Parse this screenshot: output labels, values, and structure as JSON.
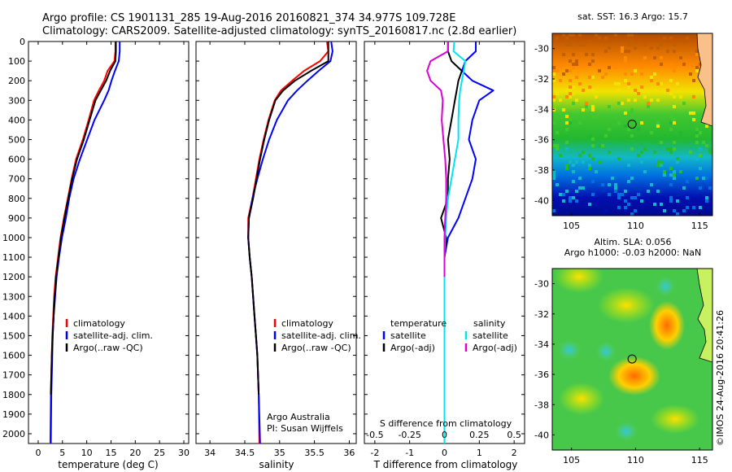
{
  "header": {
    "line1": "Argo profile: CS 1901131_285 19-Aug-2016 20160821_374 34.977S 109.728E",
    "line2": "Climatology: CARS2009. Satellite-adjusted climatology: synTS_20160817.nc (2.8d earlier)"
  },
  "watermark": "©IMOS 24-Aug-2016 20:41:26",
  "chart_data": [
    {
      "id": "temperature",
      "type": "line",
      "xlabel": "temperature (deg C)",
      "xlim": [
        -2,
        31
      ],
      "xticks": [
        "0",
        "5",
        "10",
        "15",
        "20",
        "25",
        "30"
      ],
      "ylim": [
        0,
        2050
      ],
      "yticks": [
        "0",
        "100",
        "200",
        "300",
        "400",
        "500",
        "600",
        "700",
        "800",
        "900",
        "1000",
        "1100",
        "1200",
        "1300",
        "1400",
        "1500",
        "1600",
        "1700",
        "1800",
        "1900",
        "2000"
      ],
      "legend": [
        "climatology",
        "satellite-adj. clim.",
        "Argo(..raw -QC)"
      ],
      "legend_position": "lower-right",
      "series": [
        {
          "name": "climatology",
          "color": "#ff0000",
          "x": [
            15.9,
            15.9,
            15.7,
            14.3,
            13.6,
            12.5,
            11.5,
            10.4,
            9.2,
            7.8,
            6.9,
            6.1,
            5.3,
            4.6,
            4.1,
            3.6,
            3.3,
            3.1,
            2.9,
            2.8,
            2.6,
            2.5
          ],
          "y": [
            0,
            50,
            100,
            150,
            200,
            250,
            300,
            400,
            500,
            600,
            700,
            800,
            900,
            1000,
            1100,
            1200,
            1300,
            1400,
            1500,
            1600,
            1800,
            2050
          ]
        },
        {
          "name": "satellite-adj. clim.",
          "color": "#0000ff",
          "x": [
            16.8,
            16.8,
            16.6,
            15.8,
            15.1,
            14.5,
            13.6,
            11.6,
            10.1,
            8.6,
            7.3,
            6.4,
            5.7,
            4.9,
            4.3,
            3.8,
            3.5,
            3.2,
            3.0,
            2.9,
            2.7,
            2.6
          ],
          "y": [
            0,
            50,
            100,
            150,
            200,
            250,
            300,
            400,
            500,
            600,
            700,
            800,
            900,
            1000,
            1100,
            1200,
            1300,
            1400,
            1500,
            1600,
            1800,
            2050
          ]
        },
        {
          "name": "Argo(..raw -QC)",
          "color": "#000000",
          "x": [
            16.0,
            16.0,
            15.9,
            14.8,
            14.0,
            12.9,
            11.8,
            10.6,
            9.4,
            8.0,
            7.0,
            6.2,
            5.4,
            4.7,
            4.2,
            3.7,
            3.4,
            3.2,
            3.0,
            2.8,
            2.6
          ],
          "y": [
            0,
            50,
            100,
            150,
            200,
            250,
            300,
            400,
            500,
            600,
            700,
            800,
            900,
            1000,
            1100,
            1200,
            1300,
            1400,
            1500,
            1600,
            1800
          ]
        }
      ]
    },
    {
      "id": "salinity",
      "type": "line",
      "xlabel": "salinity",
      "xlim": [
        33.8,
        36.1
      ],
      "xticks": [
        "34",
        "34.5",
        "35",
        "35.5",
        "36"
      ],
      "ylim": [
        0,
        2050
      ],
      "legend": [
        "climatology",
        "satellite-adj. clim.",
        "Argo(..raw -QC)"
      ],
      "legend_position": "lower-right",
      "annotation": [
        "Argo Australia",
        "PI: Susan Wijffels"
      ],
      "series": [
        {
          "name": "climatology",
          "color": "#ff0000",
          "x": [
            35.68,
            35.7,
            35.58,
            35.35,
            35.18,
            35.02,
            34.93,
            34.84,
            34.77,
            34.71,
            34.66,
            34.61,
            34.55,
            34.55,
            34.57,
            34.6,
            34.62,
            34.64,
            34.66,
            34.68,
            34.7,
            34.71
          ],
          "y": [
            0,
            50,
            100,
            150,
            200,
            250,
            300,
            400,
            500,
            600,
            700,
            800,
            900,
            1000,
            1100,
            1200,
            1300,
            1400,
            1500,
            1600,
            1800,
            2050
          ]
        },
        {
          "name": "satellite-adj. clim.",
          "color": "#0000ff",
          "x": [
            35.74,
            35.76,
            35.73,
            35.56,
            35.4,
            35.25,
            35.12,
            34.96,
            34.85,
            34.76,
            34.68,
            34.61,
            34.56,
            34.55,
            34.57,
            34.6,
            34.62,
            34.64,
            34.66,
            34.68,
            34.7,
            34.72
          ],
          "y": [
            0,
            50,
            100,
            150,
            200,
            250,
            300,
            400,
            500,
            600,
            700,
            800,
            900,
            1000,
            1100,
            1200,
            1300,
            1400,
            1500,
            1600,
            1800,
            2050
          ]
        },
        {
          "name": "Argo(..raw -QC)",
          "color": "#000000",
          "x": [
            35.7,
            35.7,
            35.7,
            35.45,
            35.22,
            35.05,
            34.94,
            34.85,
            34.78,
            34.72,
            34.67,
            34.62,
            34.56,
            34.55,
            34.57,
            34.6,
            34.62,
            34.64,
            34.66,
            34.68,
            34.7
          ],
          "y": [
            0,
            50,
            100,
            150,
            200,
            250,
            300,
            400,
            500,
            600,
            700,
            800,
            900,
            1000,
            1100,
            1200,
            1300,
            1400,
            1500,
            1600,
            1800
          ]
        }
      ]
    },
    {
      "id": "difference",
      "type": "line",
      "xlabel_top": "S difference from climatology",
      "xticks_top": [
        "-0.5",
        "-0.25",
        "0",
        "0.25",
        "0.5"
      ],
      "xlabel": "T difference from climatology",
      "xlim": [
        -2.3,
        2.3
      ],
      "xticks": [
        "-2",
        "-1",
        "0",
        "1",
        "2"
      ],
      "ylim": [
        0,
        2050
      ],
      "legend_titles": [
        "temperature",
        "salinity"
      ],
      "legend": [
        "satellite",
        "Argo(-adj)",
        "satellite",
        "Argo(-adj)"
      ],
      "legend_position": "lower",
      "series": [
        {
          "name": "temperature satellite",
          "color": "#0000ff",
          "x": [
            0.9,
            0.9,
            0.6,
            0.5,
            0.8,
            1.4,
            1.0,
            0.8,
            0.7,
            0.9,
            0.8,
            0.6,
            0.4,
            0.1,
            0,
            0,
            0,
            0,
            0,
            0,
            0
          ],
          "y": [
            0,
            50,
            100,
            150,
            200,
            250,
            300,
            400,
            500,
            600,
            700,
            800,
            900,
            1000,
            1100,
            1200,
            1300,
            1400,
            1500,
            1600,
            2050
          ]
        },
        {
          "name": "temperature Argo(-adj)",
          "color": "#000000",
          "x": [
            0.1,
            0.1,
            0.2,
            0.5,
            0.4,
            0.35,
            0.3,
            0.2,
            0.1,
            0.15,
            0.1,
            0.1,
            -0.1,
            0.05,
            0,
            0,
            0,
            0
          ],
          "y": [
            0,
            50,
            100,
            150,
            200,
            250,
            300,
            400,
            500,
            600,
            700,
            800,
            900,
            1000,
            1100,
            1200,
            1300,
            1600
          ]
        },
        {
          "name": "salinity satellite",
          "color": "#00e5ee",
          "x": [
            0.28,
            0.26,
            0.6,
            0.55,
            0.5,
            0.45,
            0.42,
            0.4,
            0.4,
            0.3,
            0.2,
            0.1,
            0.05,
            0.02,
            0,
            0,
            0,
            0
          ],
          "y": [
            0,
            50,
            100,
            150,
            200,
            250,
            300,
            400,
            500,
            600,
            700,
            800,
            900,
            1000,
            1100,
            1200,
            1300,
            2050
          ]
        },
        {
          "name": "salinity Argo(-adj)",
          "color": "#d900d9",
          "x": [
            0.1,
            0.1,
            -0.4,
            -0.5,
            -0.4,
            -0.1,
            -0.05,
            -0.08,
            -0.03,
            0.02,
            0.05,
            0.05,
            0.02,
            0,
            0,
            0
          ],
          "y": [
            0,
            50,
            100,
            150,
            200,
            250,
            300,
            400,
            500,
            600,
            700,
            800,
            900,
            1000,
            1100,
            1200
          ]
        }
      ]
    },
    {
      "id": "sst_map",
      "type": "heatmap",
      "title": "sat. SST: 16.3 Argo: 15.7",
      "xlim": [
        103.5,
        116
      ],
      "ylim": [
        -41,
        -29
      ],
      "xticks": [
        "105",
        "110",
        "115"
      ],
      "yticks": [
        "-30",
        "-32",
        "-34",
        "-36",
        "-38",
        "-40"
      ],
      "argo_position": {
        "lon": 109.728,
        "lat": -34.977
      }
    },
    {
      "id": "sla_map",
      "type": "heatmap",
      "title": "Altim. SLA: 0.056",
      "subtitle": "Argo h1000: -0.03 h2000: NaN",
      "xlim": [
        103.5,
        116
      ],
      "ylim": [
        -41,
        -29
      ],
      "xticks": [
        "105",
        "110",
        "115"
      ],
      "yticks": [
        "-30",
        "-32",
        "-34",
        "-36",
        "-38",
        "-40"
      ],
      "argo_position": {
        "lon": 109.728,
        "lat": -34.977
      }
    }
  ]
}
